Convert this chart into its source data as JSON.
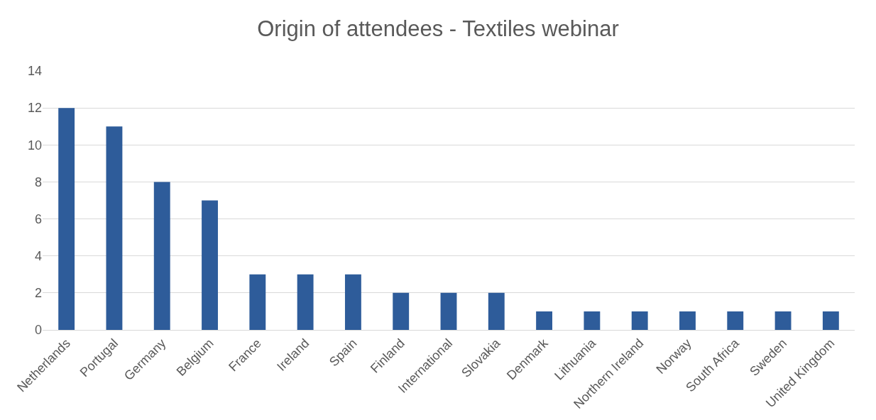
{
  "chart_data": {
    "type": "bar",
    "title": "Origin of attendees - Textiles webinar",
    "categories": [
      "Netherlands",
      "Portugal",
      "Germany",
      "Belgium",
      "France",
      "Ireland",
      "Spain",
      "Finland",
      "International",
      "Slovakia",
      "Denmark",
      "Lithuania",
      "Northern Ireland",
      "Norway",
      "South Africa",
      "Sweden",
      "United Kingdom"
    ],
    "values": [
      12,
      11,
      8,
      7,
      3,
      3,
      3,
      2,
      2,
      2,
      1,
      1,
      1,
      1,
      1,
      1,
      1
    ],
    "color": "#2e5c9a",
    "ylim": [
      0,
      14
    ],
    "yticks": [
      0,
      2,
      4,
      6,
      8,
      10,
      12,
      14
    ],
    "grid": "y"
  }
}
